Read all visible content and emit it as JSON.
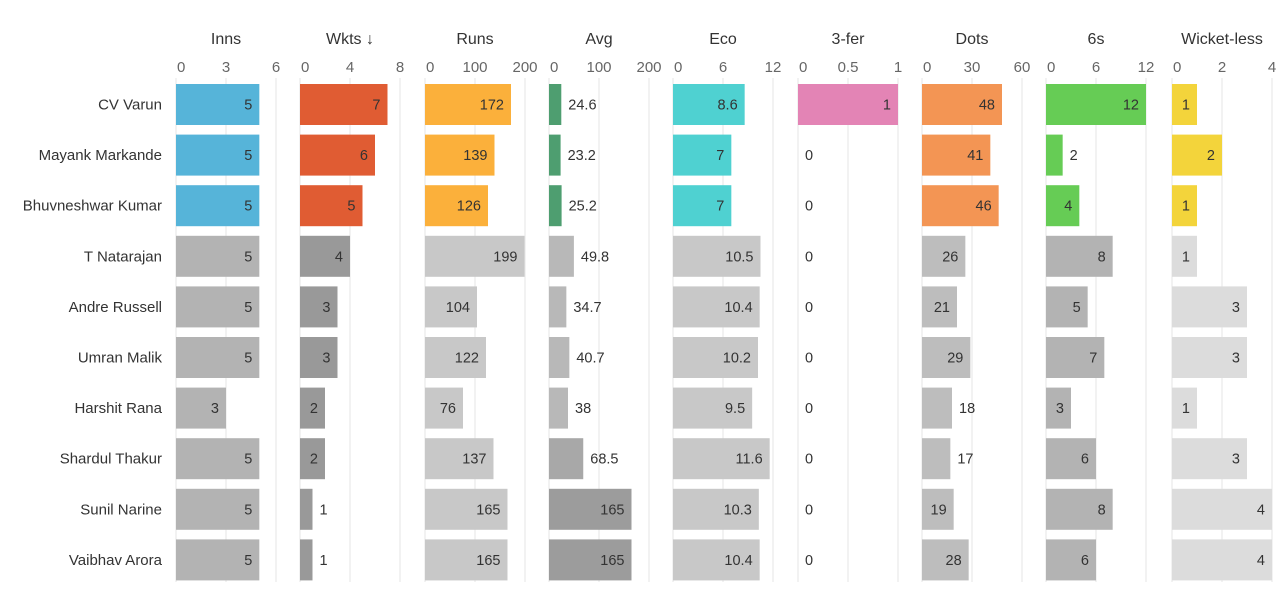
{
  "chart_data": {
    "type": "bar",
    "players": [
      "CV Varun",
      "Mayank Markande",
      "Bhuvneshwar Kumar",
      "T Natarajan",
      "Andre Russell",
      "Umran Malik",
      "Harshit Rana",
      "Shardul Thakur",
      "Sunil Narine",
      "Vaibhav Arora"
    ],
    "highlight_rows": 3,
    "columns": [
      {
        "key": "inns",
        "header": "Inns",
        "ticks": [
          0,
          3,
          6
        ],
        "tick_labels": [
          "0",
          "3",
          "6"
        ],
        "domain": [
          0,
          6
        ],
        "color": "#56b4d9",
        "muted_color": "#b3b3b3",
        "values": [
          5,
          5,
          5,
          5,
          5,
          5,
          3,
          5,
          5,
          5
        ],
        "labels": [
          "5",
          "5",
          "5",
          "5",
          "5",
          "5",
          "3",
          "5",
          "5",
          "5"
        ],
        "value_colors": null
      },
      {
        "key": "wkts",
        "header": "Wkts ↓",
        "ticks": [
          0,
          4,
          8
        ],
        "tick_labels": [
          "0",
          "4",
          "8"
        ],
        "domain": [
          0,
          8
        ],
        "color": "#e05c33",
        "muted_color": "#999999",
        "values": [
          7,
          6,
          5,
          4,
          3,
          3,
          2,
          2,
          1,
          1
        ],
        "labels": [
          "7",
          "6",
          "5",
          "4",
          "3",
          "3",
          "2",
          "2",
          "1",
          "1"
        ],
        "value_colors": null
      },
      {
        "key": "runs",
        "header": "Runs",
        "ticks": [
          0,
          100,
          200
        ],
        "tick_labels": [
          "0",
          "100",
          "200"
        ],
        "domain": [
          0,
          200
        ],
        "color": "#fbb03b",
        "muted_color": "#c8c8c8",
        "values": [
          172,
          139,
          126,
          199,
          104,
          122,
          76,
          137,
          165,
          165
        ],
        "labels": [
          "172",
          "139",
          "126",
          "199",
          "104",
          "122",
          "76",
          "137",
          "165",
          "165"
        ],
        "value_colors": null
      },
      {
        "key": "avg",
        "header": "Avg",
        "ticks": [
          0,
          100,
          200
        ],
        "tick_labels": [
          "0",
          "100",
          "200"
        ],
        "domain": [
          0,
          200
        ],
        "color": "#4e9e70",
        "muted_color": null,
        "values": [
          24.6,
          23.2,
          25.2,
          49.8,
          34.7,
          40.7,
          38,
          68.5,
          165,
          165
        ],
        "labels": [
          "24.6",
          "23.2",
          "25.2",
          "49.8",
          "34.7",
          "40.7",
          "38",
          "68.5",
          "165",
          "165"
        ],
        "value_colors": [
          "#4e9e70",
          "#4e9e70",
          "#4e9e70",
          "#b8b8b8",
          "#b8b8b8",
          "#b8b8b8",
          "#b8b8b8",
          "#a8a8a8",
          "#9c9c9c",
          "#9c9c9c"
        ]
      },
      {
        "key": "eco",
        "header": "Eco",
        "ticks": [
          0,
          6,
          12
        ],
        "tick_labels": [
          "0",
          "6",
          "12"
        ],
        "domain": [
          0,
          12
        ],
        "color": "#4fd1d1",
        "muted_color": "#c8c8c8",
        "values": [
          8.6,
          7,
          7,
          10.5,
          10.4,
          10.2,
          9.5,
          11.6,
          10.3,
          10.4
        ],
        "labels": [
          "8.6",
          "7",
          "7",
          "10.5",
          "10.4",
          "10.2",
          "9.5",
          "11.6",
          "10.3",
          "10.4"
        ],
        "value_colors": null
      },
      {
        "key": "threefer",
        "header": "3-fer",
        "ticks": [
          0,
          0.5,
          1
        ],
        "tick_labels": [
          "0",
          "0.5",
          "1"
        ],
        "domain": [
          0,
          1
        ],
        "color": "#e384b5",
        "muted_color": "#c8c8c8",
        "values": [
          1,
          0,
          0,
          0,
          0,
          0,
          0,
          0,
          0,
          0
        ],
        "labels": [
          "1",
          "0",
          "0",
          "0",
          "0",
          "0",
          "0",
          "0",
          "0",
          "0"
        ],
        "value_colors": null
      },
      {
        "key": "dots",
        "header": "Dots",
        "ticks": [
          0,
          30,
          60
        ],
        "tick_labels": [
          "0",
          "30",
          "60"
        ],
        "domain": [
          0,
          60
        ],
        "color": "#f39554",
        "muted_color": "#bdbdbd",
        "values": [
          48,
          41,
          46,
          26,
          21,
          29,
          18,
          17,
          19,
          28
        ],
        "labels": [
          "48",
          "41",
          "46",
          "26",
          "21",
          "29",
          "18",
          "17",
          "19",
          "28"
        ],
        "value_colors": null
      },
      {
        "key": "sixes",
        "header": "6s",
        "ticks": [
          0,
          6,
          12
        ],
        "tick_labels": [
          "0",
          "6",
          "12"
        ],
        "domain": [
          0,
          12
        ],
        "color": "#66cc55",
        "muted_color": "#b3b3b3",
        "values": [
          12,
          2,
          4,
          8,
          5,
          7,
          3,
          6,
          8,
          6
        ],
        "labels": [
          "12",
          "2",
          "4",
          "8",
          "5",
          "7",
          "3",
          "6",
          "8",
          "6"
        ],
        "value_colors": null
      },
      {
        "key": "wicketless",
        "header": "Wicket-less",
        "ticks": [
          0,
          2,
          4
        ],
        "tick_labels": [
          "0",
          "2",
          "4"
        ],
        "domain": [
          0,
          4
        ],
        "color": "#f3d43b",
        "muted_color": "#dcdcdc",
        "values": [
          1,
          2,
          1,
          1,
          3,
          3,
          1,
          3,
          4,
          4
        ],
        "labels": [
          "1",
          "2",
          "1",
          "1",
          "3",
          "3",
          "1",
          "3",
          "4",
          "4"
        ],
        "value_colors": null
      }
    ],
    "grid": true,
    "legend": "none"
  }
}
